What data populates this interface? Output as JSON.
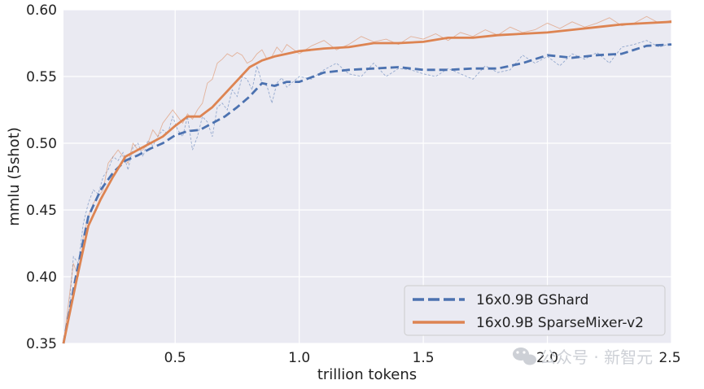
{
  "chart_data": {
    "type": "line",
    "xlabel": "trillion tokens",
    "ylabel": "mmlu (5shot)",
    "xlim": [
      0.05,
      2.5
    ],
    "ylim": [
      0.35,
      0.6
    ],
    "x_ticks": [
      {
        "value": 0.5,
        "label": "0.5"
      },
      {
        "value": 1.0,
        "label": "1.0"
      },
      {
        "value": 1.5,
        "label": "1.5"
      },
      {
        "value": 2.0,
        "label": "2.0"
      },
      {
        "value": 2.5,
        "label": "2.5"
      }
    ],
    "y_ticks": [
      {
        "value": 0.35,
        "label": "0.35"
      },
      {
        "value": 0.4,
        "label": "0.40"
      },
      {
        "value": 0.45,
        "label": "0.45"
      },
      {
        "value": 0.5,
        "label": "0.50"
      },
      {
        "value": 0.55,
        "label": "0.55"
      },
      {
        "value": 0.6,
        "label": "0.60"
      }
    ],
    "grid": true,
    "legend_position": "bottom-right",
    "series": [
      {
        "name": "16x0.9B GShard",
        "color": "#4c72b0",
        "line_style": "dashed",
        "x": [
          0.05,
          0.1,
          0.15,
          0.2,
          0.25,
          0.3,
          0.35,
          0.4,
          0.45,
          0.5,
          0.55,
          0.6,
          0.65,
          0.7,
          0.75,
          0.8,
          0.85,
          0.9,
          0.95,
          1.0,
          1.1,
          1.2,
          1.3,
          1.4,
          1.5,
          1.6,
          1.7,
          1.8,
          1.9,
          2.0,
          2.1,
          2.2,
          2.3,
          2.4,
          2.5
        ],
        "values": [
          0.34,
          0.4,
          0.445,
          0.465,
          0.478,
          0.487,
          0.491,
          0.496,
          0.5,
          0.506,
          0.509,
          0.51,
          0.515,
          0.52,
          0.527,
          0.535,
          0.545,
          0.543,
          0.546,
          0.546,
          0.553,
          0.555,
          0.556,
          0.557,
          0.555,
          0.555,
          0.556,
          0.556,
          0.56,
          0.566,
          0.564,
          0.566,
          0.567,
          0.573,
          0.574
        ]
      },
      {
        "name": "16x0.9B SparseMixer-v2",
        "color": "#dd8452",
        "line_style": "solid",
        "x": [
          0.05,
          0.1,
          0.15,
          0.2,
          0.25,
          0.3,
          0.35,
          0.4,
          0.45,
          0.5,
          0.55,
          0.6,
          0.65,
          0.7,
          0.75,
          0.8,
          0.85,
          0.9,
          0.95,
          1.0,
          1.1,
          1.2,
          1.3,
          1.4,
          1.5,
          1.6,
          1.7,
          1.8,
          1.9,
          2.0,
          2.1,
          2.2,
          2.3,
          2.4,
          2.5
        ],
        "values": [
          0.335,
          0.395,
          0.438,
          0.458,
          0.475,
          0.49,
          0.495,
          0.5,
          0.505,
          0.513,
          0.52,
          0.52,
          0.527,
          0.537,
          0.547,
          0.557,
          0.562,
          0.565,
          0.567,
          0.569,
          0.571,
          0.572,
          0.575,
          0.575,
          0.576,
          0.579,
          0.579,
          0.581,
          0.582,
          0.583,
          0.585,
          0.587,
          0.589,
          0.59,
          0.591
        ]
      },
      {
        "name": "",
        "color": "#4c72b0",
        "line_style": "thin-raw",
        "x": [
          0.05,
          0.07,
          0.09,
          0.11,
          0.13,
          0.15,
          0.17,
          0.19,
          0.21,
          0.23,
          0.25,
          0.27,
          0.29,
          0.31,
          0.33,
          0.35,
          0.37,
          0.39,
          0.41,
          0.43,
          0.45,
          0.47,
          0.49,
          0.51,
          0.53,
          0.55,
          0.57,
          0.59,
          0.61,
          0.63,
          0.65,
          0.67,
          0.69,
          0.71,
          0.73,
          0.75,
          0.77,
          0.79,
          0.81,
          0.83,
          0.85,
          0.87,
          0.89,
          0.91,
          0.93,
          0.95,
          1.0,
          1.05,
          1.1,
          1.15,
          1.2,
          1.25,
          1.3,
          1.35,
          1.4,
          1.45,
          1.5,
          1.55,
          1.6,
          1.65,
          1.7,
          1.75,
          1.8,
          1.85,
          1.9,
          1.95,
          2.0,
          2.05,
          2.1,
          2.15,
          2.2,
          2.25,
          2.3,
          2.35,
          2.4,
          2.45,
          2.5
        ],
        "values": [
          0.35,
          0.37,
          0.415,
          0.41,
          0.44,
          0.455,
          0.465,
          0.462,
          0.475,
          0.48,
          0.49,
          0.487,
          0.493,
          0.48,
          0.497,
          0.5,
          0.49,
          0.502,
          0.498,
          0.505,
          0.51,
          0.507,
          0.52,
          0.51,
          0.505,
          0.52,
          0.495,
          0.505,
          0.52,
          0.516,
          0.505,
          0.527,
          0.53,
          0.525,
          0.54,
          0.535,
          0.55,
          0.548,
          0.54,
          0.558,
          0.545,
          0.543,
          0.53,
          0.545,
          0.549,
          0.542,
          0.55,
          0.548,
          0.555,
          0.56,
          0.552,
          0.55,
          0.56,
          0.55,
          0.556,
          0.555,
          0.552,
          0.55,
          0.556,
          0.552,
          0.548,
          0.558,
          0.553,
          0.555,
          0.566,
          0.56,
          0.565,
          0.558,
          0.567,
          0.563,
          0.568,
          0.56,
          0.572,
          0.574,
          0.577,
          0.572,
          0.575
        ]
      },
      {
        "name": "",
        "color": "#dd8452",
        "line_style": "thin-raw",
        "x": [
          0.05,
          0.07,
          0.09,
          0.11,
          0.13,
          0.15,
          0.17,
          0.19,
          0.21,
          0.23,
          0.25,
          0.27,
          0.29,
          0.31,
          0.33,
          0.35,
          0.37,
          0.39,
          0.41,
          0.43,
          0.45,
          0.47,
          0.49,
          0.51,
          0.53,
          0.55,
          0.57,
          0.59,
          0.61,
          0.63,
          0.65,
          0.67,
          0.69,
          0.71,
          0.73,
          0.75,
          0.77,
          0.79,
          0.81,
          0.83,
          0.85,
          0.87,
          0.89,
          0.91,
          0.93,
          0.95,
          1.0,
          1.05,
          1.1,
          1.15,
          1.2,
          1.25,
          1.3,
          1.35,
          1.4,
          1.45,
          1.5,
          1.55,
          1.6,
          1.65,
          1.7,
          1.75,
          1.8,
          1.85,
          1.9,
          1.95,
          2.0,
          2.05,
          2.1,
          2.15,
          2.2,
          2.25,
          2.3,
          2.35,
          2.4,
          2.45,
          2.5
        ],
        "values": [
          0.34,
          0.38,
          0.41,
          0.4,
          0.43,
          0.445,
          0.455,
          0.46,
          0.465,
          0.485,
          0.49,
          0.495,
          0.49,
          0.485,
          0.5,
          0.495,
          0.495,
          0.5,
          0.51,
          0.505,
          0.515,
          0.52,
          0.525,
          0.52,
          0.515,
          0.522,
          0.518,
          0.525,
          0.53,
          0.545,
          0.548,
          0.56,
          0.563,
          0.567,
          0.565,
          0.568,
          0.566,
          0.56,
          0.562,
          0.567,
          0.57,
          0.563,
          0.565,
          0.572,
          0.568,
          0.574,
          0.567,
          0.573,
          0.577,
          0.57,
          0.574,
          0.58,
          0.576,
          0.578,
          0.574,
          0.58,
          0.578,
          0.582,
          0.577,
          0.583,
          0.58,
          0.585,
          0.581,
          0.587,
          0.583,
          0.585,
          0.59,
          0.586,
          0.591,
          0.587,
          0.59,
          0.594,
          0.588,
          0.59,
          0.595,
          0.59,
          0.592
        ]
      }
    ]
  },
  "watermark": {
    "text": "公众号 · 新智元",
    "icon": "wechat-icon",
    "color": "#cdd0d6"
  },
  "style": {
    "plot_background": "#eaeaf2",
    "grid_color": "#ffffff",
    "text_color": "#222222"
  }
}
